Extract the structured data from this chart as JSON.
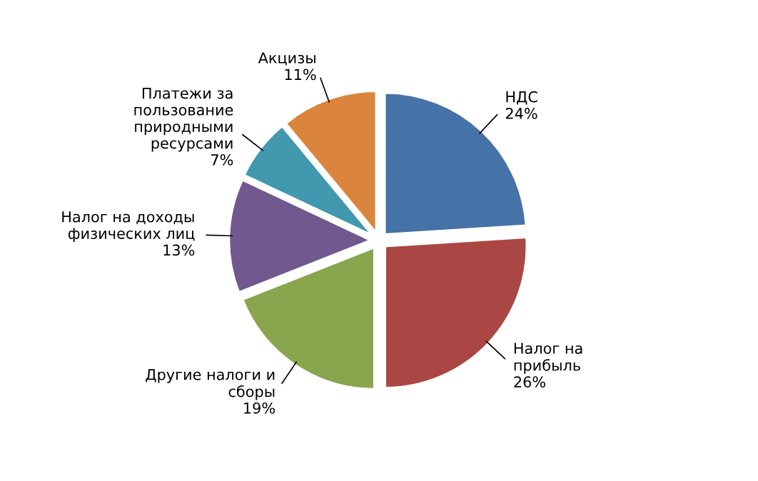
{
  "chart_data": {
    "type": "pie",
    "categories": [
      "НДС",
      "Налог на\nприбыль",
      "Другие налоги и\nсборы",
      "Налог на доходы\nфизических лиц",
      "Платежи за\nпользование\nприродными\nресурсами",
      "Акцизы"
    ],
    "values": [
      24,
      26,
      19,
      13,
      7,
      11
    ],
    "value_labels": [
      "24%",
      "26%",
      "19%",
      "13%",
      "7%",
      "11%"
    ],
    "colors": [
      "#4572a7",
      "#aa4643",
      "#89a54e",
      "#71588f",
      "#4198af",
      "#db843d"
    ],
    "legend": false
  }
}
